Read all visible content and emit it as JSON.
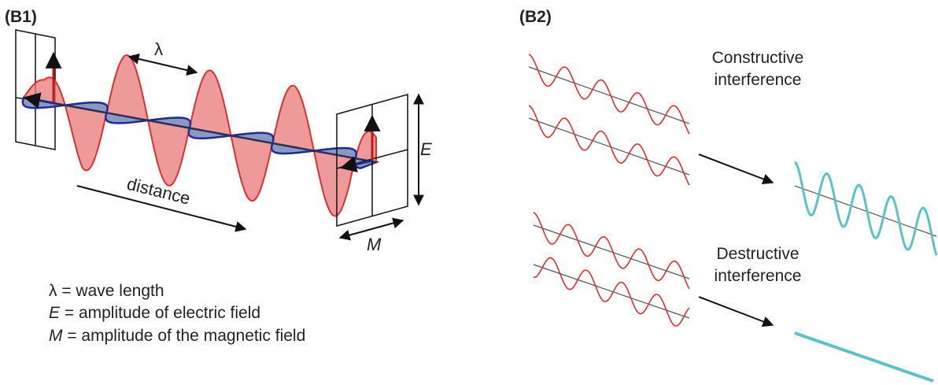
{
  "panels": {
    "left_label": "(B1)",
    "right_label": "(B2)"
  },
  "b1": {
    "lambda_label": "λ",
    "distance_label": "distance",
    "e_label": "E",
    "m_label": "M",
    "legend": [
      {
        "symbol": "λ",
        "text": " = wave length"
      },
      {
        "symbol": "E",
        "text": " = amplitude of electric field"
      },
      {
        "symbol": "M",
        "text": " = amplitude of the magnetic field"
      }
    ]
  },
  "b2": {
    "constructive_line1": "Constructive",
    "constructive_line2": "interference",
    "destructive_line1": "Destructive",
    "destructive_line2": "interference"
  },
  "colors": {
    "electric_wave": "#d9312f",
    "electric_fill": "#e8787a",
    "magnetic_wave": "#1f2c8f",
    "magnetic_fill": "#6e7fb3",
    "result_wave": "#5bc3c8",
    "axis": "#333333"
  }
}
